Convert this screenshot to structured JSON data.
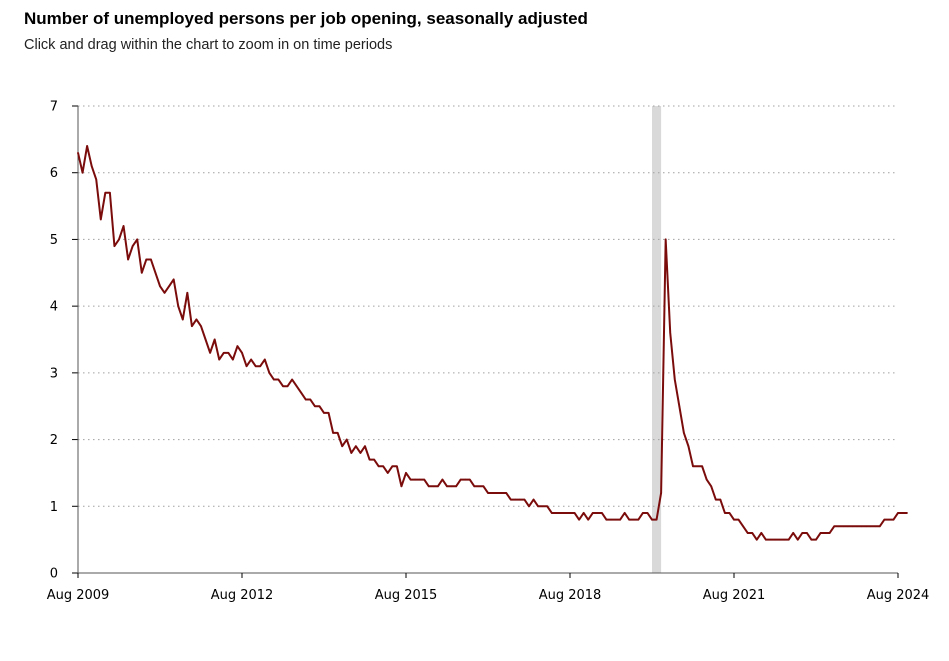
{
  "header": {
    "title": "Number of unemployed persons per job opening, seasonally adjusted",
    "subtitle": "Click and drag within the chart to zoom in on time periods"
  },
  "colors": {
    "line": "#7b0c0c",
    "recession": "#d9d9d9",
    "grid": "#a0a0a0",
    "axis": "#000000"
  },
  "chart_data": {
    "type": "line",
    "title": "Number of unemployed persons per job opening, seasonally adjusted",
    "subtitle": "Click and drag within the chart to zoom in on time periods",
    "xlabel": "",
    "ylabel": "",
    "xlim": [
      "2009-08",
      "2024-08"
    ],
    "ylim": [
      0,
      7
    ],
    "y_ticks": [
      0,
      1,
      2,
      3,
      4,
      5,
      6,
      7
    ],
    "x_tick_labels": [
      "Aug 2009",
      "Aug 2012",
      "Aug 2015",
      "Aug 2018",
      "Aug 2021",
      "Aug 2024"
    ],
    "x_tick_dates": [
      "2009-08",
      "2012-08",
      "2015-08",
      "2018-08",
      "2021-08",
      "2024-08"
    ],
    "grid": "horizontal dotted",
    "recession_shading": {
      "start": "2020-02",
      "end": "2020-04"
    },
    "series": [
      {
        "start": "2009-08",
        "frequency": "monthly",
        "values": [
          6.3,
          6.0,
          6.4,
          6.1,
          5.9,
          5.3,
          5.7,
          5.7,
          4.9,
          5.0,
          5.2,
          4.7,
          4.9,
          5.0,
          4.5,
          4.7,
          4.7,
          4.5,
          4.3,
          4.2,
          4.3,
          4.4,
          4.0,
          3.8,
          4.2,
          3.7,
          3.8,
          3.7,
          3.5,
          3.3,
          3.5,
          3.2,
          3.3,
          3.3,
          3.2,
          3.4,
          3.3,
          3.1,
          3.2,
          3.1,
          3.1,
          3.2,
          3.0,
          2.9,
          2.9,
          2.8,
          2.8,
          2.9,
          2.8,
          2.7,
          2.6,
          2.6,
          2.5,
          2.5,
          2.4,
          2.4,
          2.1,
          2.1,
          1.9,
          2.0,
          1.8,
          1.9,
          1.8,
          1.9,
          1.7,
          1.7,
          1.6,
          1.6,
          1.5,
          1.6,
          1.6,
          1.3,
          1.5,
          1.4,
          1.4,
          1.4,
          1.4,
          1.3,
          1.3,
          1.3,
          1.4,
          1.3,
          1.3,
          1.3,
          1.4,
          1.4,
          1.4,
          1.3,
          1.3,
          1.3,
          1.2,
          1.2,
          1.2,
          1.2,
          1.2,
          1.1,
          1.1,
          1.1,
          1.1,
          1.0,
          1.1,
          1.0,
          1.0,
          1.0,
          0.9,
          0.9,
          0.9,
          0.9,
          0.9,
          0.9,
          0.8,
          0.9,
          0.8,
          0.9,
          0.9,
          0.9,
          0.8,
          0.8,
          0.8,
          0.8,
          0.9,
          0.8,
          0.8,
          0.8,
          0.9,
          0.9,
          0.8,
          0.8,
          1.2,
          5.0,
          3.6,
          2.9,
          2.5,
          2.1,
          1.9,
          1.6,
          1.6,
          1.6,
          1.4,
          1.3,
          1.1,
          1.1,
          0.9,
          0.9,
          0.8,
          0.8,
          0.7,
          0.6,
          0.6,
          0.5,
          0.6,
          0.5,
          0.5,
          0.5,
          0.5,
          0.5,
          0.5,
          0.6,
          0.5,
          0.6,
          0.6,
          0.5,
          0.5,
          0.6,
          0.6,
          0.6,
          0.7,
          0.7,
          0.7,
          0.7,
          0.7,
          0.7,
          0.7,
          0.7,
          0.7,
          0.7,
          0.7,
          0.8,
          0.8,
          0.8,
          0.9,
          0.9,
          0.9
        ]
      }
    ]
  }
}
